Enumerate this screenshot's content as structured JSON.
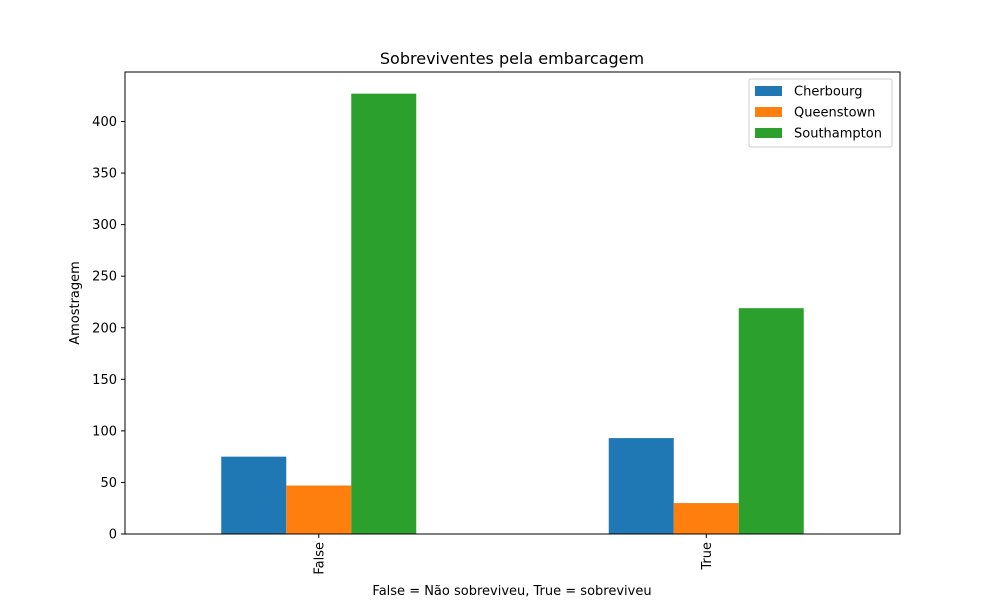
{
  "chart_data": {
    "type": "bar",
    "title": "Sobreviventes pela embarcagem",
    "xlabel": "False = Não sobreviveu, True = sobreviveu",
    "ylabel": "Amostragem",
    "categories": [
      "False",
      "True"
    ],
    "series": [
      {
        "name": "Cherbourg",
        "color": "#1f77b4",
        "values": [
          75,
          93
        ]
      },
      {
        "name": "Queenstown",
        "color": "#ff7f0e",
        "values": [
          47,
          30
        ]
      },
      {
        "name": "Southampton",
        "color": "#2ca02c",
        "values": [
          427,
          219
        ]
      }
    ],
    "ylim": [
      0,
      448
    ],
    "yticks": [
      0,
      50,
      100,
      150,
      200,
      250,
      300,
      350,
      400
    ],
    "legend": "top-right",
    "grid": false
  }
}
